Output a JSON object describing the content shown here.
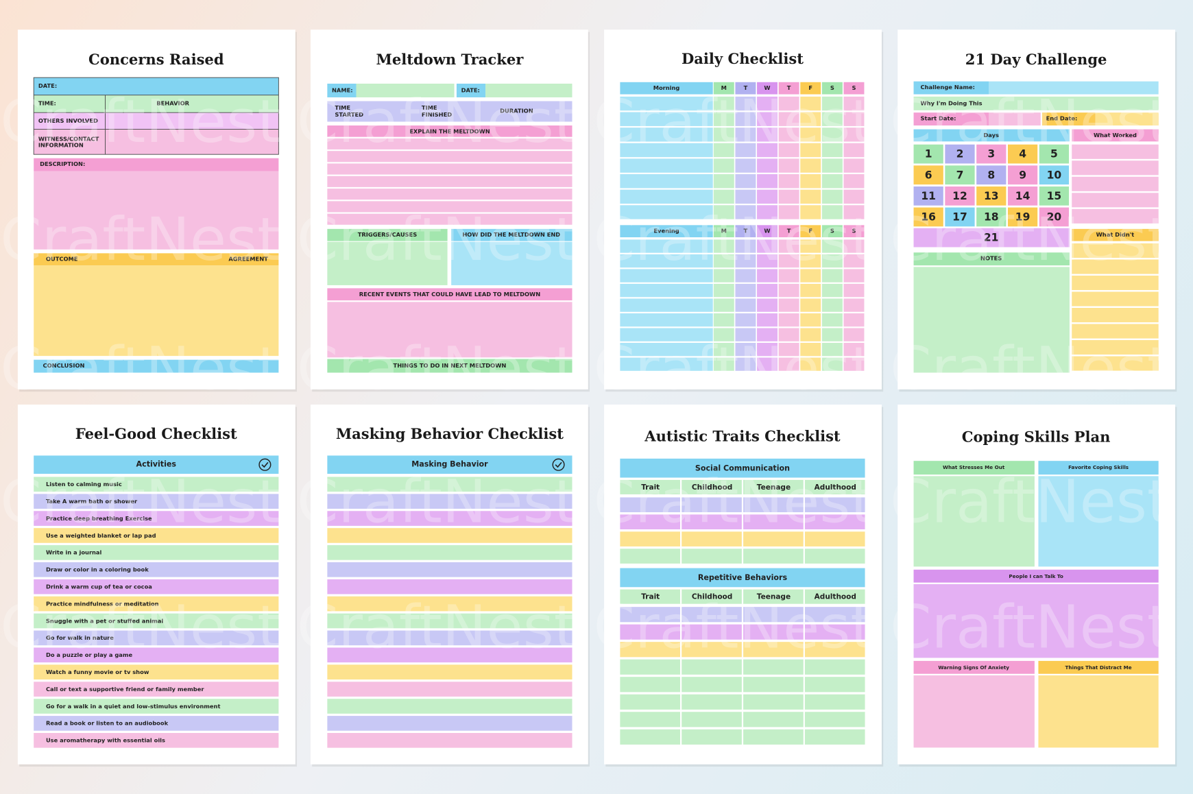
{
  "watermark": "CraftNest",
  "pages": [
    {
      "title": "Concerns Raised",
      "date": "DATE:",
      "time": "TIME:",
      "behavior": "BEHAVIOR",
      "others": "OTHERS INVOLVED",
      "witness": [
        "WITNESS/CONTACT",
        "INFORMATION"
      ],
      "description": "DESCRIPTION:",
      "outcome": "OUTCOME",
      "agreement": "AGREEMENT",
      "conclusion": "CONCLUSION"
    },
    {
      "title": "Meltdown Tracker",
      "name": "NAME:",
      "date": "DATE:",
      "time_started": [
        "TIME",
        "STARTED"
      ],
      "time_finished": [
        "TIME",
        "FINISHED"
      ],
      "duration": "DURATION",
      "explain": "EXPLAIN THE MELTDOWN",
      "triggers": "TRIGGERS/CAUSES",
      "how_end": "HOW DID THE MELTDOWN END",
      "recent": "RECENT EVENTS THAT COULD HAVE LEAD TO MELTDOWN",
      "next": "THINGS TO DO IN NEXT MELTDOWN"
    },
    {
      "title": "Daily Checklist",
      "sections": [
        "Morning",
        "Evening"
      ],
      "days": [
        "M",
        "T",
        "W",
        "T",
        "F",
        "S",
        "S"
      ]
    },
    {
      "title": "21 Day Challenge",
      "challenge_name": "Challenge Name:",
      "why": "Why I'm Doing This",
      "start": "Start Date:",
      "end": "End Date:",
      "days_header": "Days",
      "days": [
        1,
        2,
        3,
        4,
        5,
        6,
        7,
        8,
        9,
        10,
        11,
        12,
        13,
        14,
        15,
        16,
        17,
        18,
        19,
        20,
        21
      ],
      "worked": "What Worked",
      "didnt": "What Didn't",
      "notes": "NOTES"
    },
    {
      "title": "Feel-Good Checklist",
      "header": "Activities",
      "items": [
        "Listen to calming music",
        "Take A warm bath or shower",
        "Practice deep breathing Exercise",
        "Use a weighted blanket or lap pad",
        "Write in a journal",
        "Draw or color in a coloring book",
        "Drink a warm cup of tea or cocoa",
        "Practice mindfulness or meditation",
        "Snuggle with a pet or stuffed animal",
        "Go for walk in nature",
        "Do a puzzle or play a game",
        "Watch a funny movie or tv show",
        "Call or text a supportive friend or family member",
        "Go for a walk in a quiet and low-stimulus environment",
        "Read a book or listen to an audiobook",
        "Use aromatherapy with essential oils"
      ]
    },
    {
      "title": "Masking Behavior  Checklist",
      "header": "Masking Behavior"
    },
    {
      "title": "Autistic Traits Checklist",
      "sections": [
        "Social Communication",
        "Repetitive Behaviors"
      ],
      "columns": [
        "Trait",
        "Childhood",
        "Teenage",
        "Adulthood"
      ]
    },
    {
      "title": "Coping Skills Plan",
      "stresses": "What Stresses Me Out",
      "favorite": "Favorite  Coping Skills",
      "people": "People I can Talk To",
      "warning": "Warning Signs Of Anxiety",
      "distract": "Things That Distract Me"
    }
  ]
}
